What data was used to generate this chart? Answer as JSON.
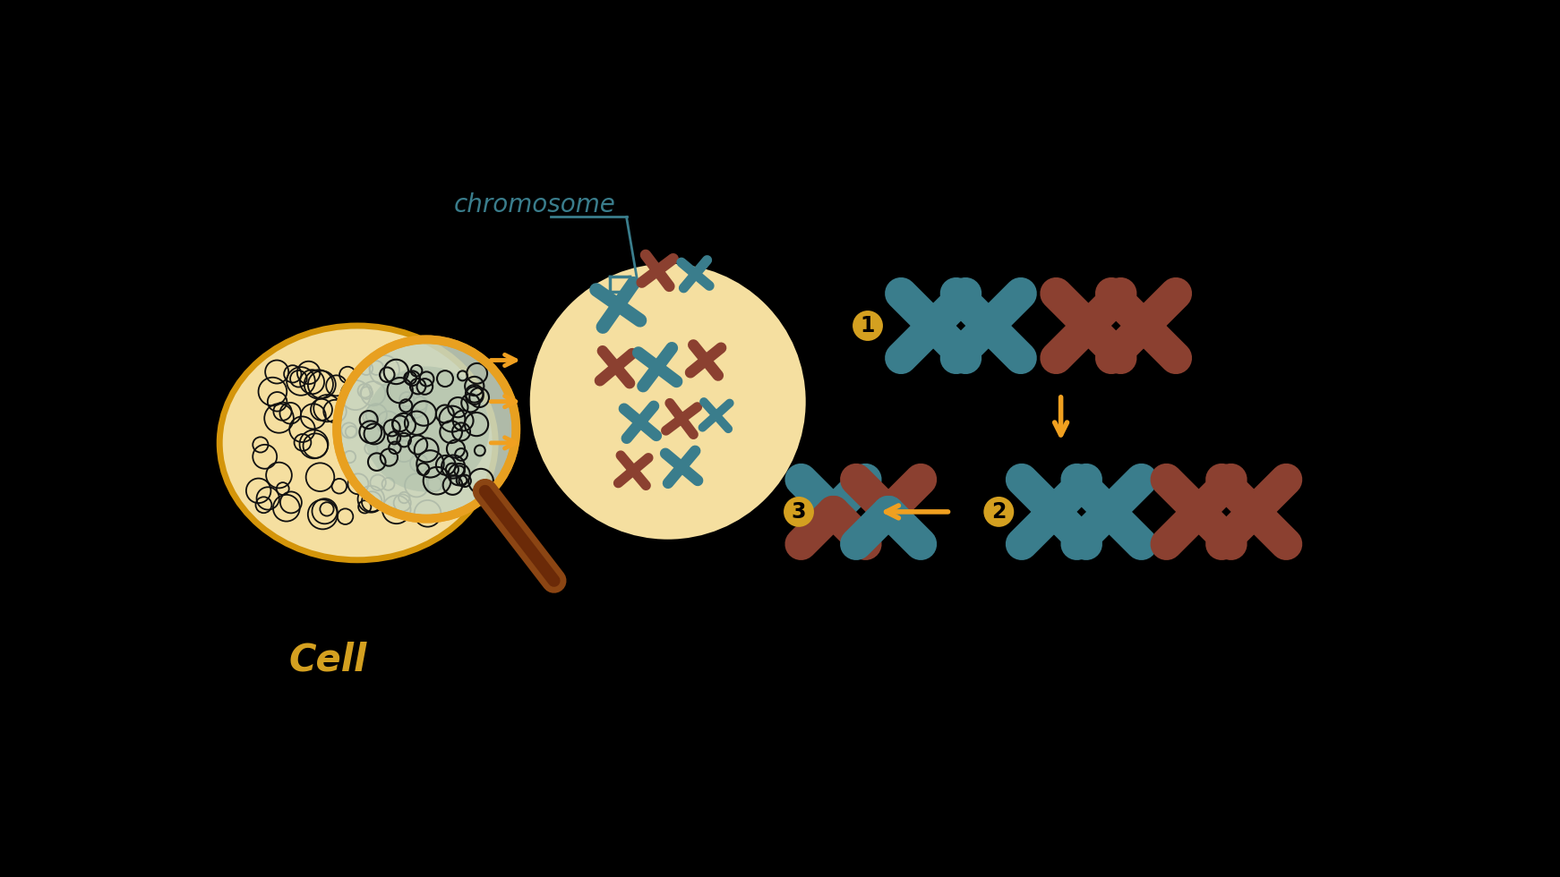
{
  "bg_color": "#000000",
  "cell_fill": "#F5DFA0",
  "cell_border": "#D4950A",
  "mag_lens_fill": "#C8D5C0",
  "mag_border": "#E8A020",
  "mag_handle": "#7A3010",
  "nucleus_fill": "#F5DFA0",
  "teal": "#3A7D8C",
  "brown": "#8B4030",
  "orange": "#F0A020",
  "step_badge": "#D4A020",
  "label_teal": "#3A7D8C",
  "cell_label_color": "#D4A020",
  "chromosome_text": "chromosome",
  "cell_text": "Cell"
}
